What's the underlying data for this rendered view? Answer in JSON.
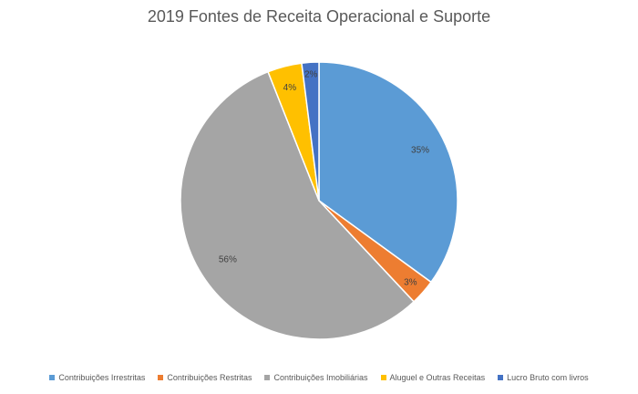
{
  "chart_data": {
    "type": "pie",
    "title": "2019 Fontes de Receita Operacional e Suporte",
    "slices": [
      {
        "label": "Contribuições Irrestritas",
        "value": 35,
        "display": "35%",
        "color": "#5b9bd5"
      },
      {
        "label": "Contribuições Restritas",
        "value": 3,
        "display": "3%",
        "color": "#ed7d31"
      },
      {
        "label": "Contribuições Imobiliárias",
        "value": 56,
        "display": "56%",
        "color": "#a5a5a5"
      },
      {
        "label": "Aluguel e Outras Receitas",
        "value": 4,
        "display": "4%",
        "color": "#ffc000"
      },
      {
        "label": "Lucro Bruto com livros",
        "value": 2,
        "display": "2%",
        "color": "#4472c4"
      }
    ],
    "legend_position": "bottom"
  }
}
